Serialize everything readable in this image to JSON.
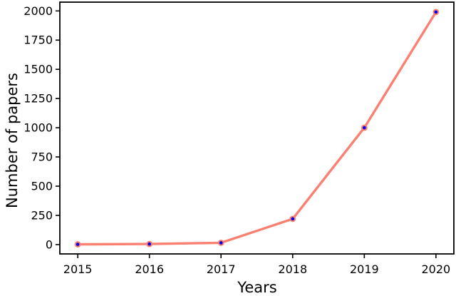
{
  "figure": {
    "background": "#ffffff"
  },
  "chart_data": {
    "type": "line",
    "title": "",
    "xlabel": "Years",
    "ylabel": "Number of papers",
    "x": [
      2015,
      2016,
      2017,
      2018,
      2019,
      2020
    ],
    "series": [
      {
        "name": "Number of papers",
        "values": [
          2,
          5,
          15,
          220,
          1000,
          1990
        ]
      }
    ],
    "x_tick_labels": [
      "2015",
      "2016",
      "2017",
      "2018",
      "2019",
      "2020"
    ],
    "x_tick_values": [
      2015,
      2016,
      2017,
      2018,
      2019,
      2020
    ],
    "y_tick_labels": [
      "0",
      "250",
      "500",
      "750",
      "1000",
      "1250",
      "1500",
      "1750",
      "2000"
    ],
    "y_tick_values": [
      0,
      250,
      500,
      750,
      1000,
      1250,
      1500,
      1750,
      2000
    ],
    "xlim": [
      2014.75,
      2020.25
    ],
    "ylim": [
      -80,
      2075
    ],
    "grid": false,
    "legend": null,
    "colors": {
      "line": "#fa8072",
      "marker_face": "#0000ee",
      "marker_edge": "#fa8072",
      "axis": "#000000",
      "text": "#000000"
    }
  }
}
